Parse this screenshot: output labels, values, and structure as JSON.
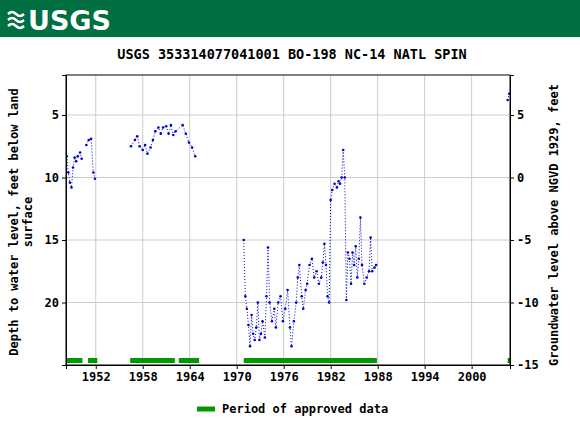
{
  "header": {
    "logo": "USGS"
  },
  "chart_data": {
    "type": "line",
    "title": "USGS 353314077041001 BO-198 NC-14 NATL SPIN",
    "ylabel": [
      "Depth to water level, feet below land",
      "surface"
    ],
    "y2label": "Groundwater level above NGVD 1929, feet",
    "xlim": [
      1948.2,
      2004.9
    ],
    "xticks": [
      1952,
      1958,
      1964,
      1970,
      1976,
      1982,
      1988,
      1994,
      2000
    ],
    "ylim": [
      25,
      1.8
    ],
    "yticks": [
      5,
      10,
      15,
      20
    ],
    "y2lim": [
      -15,
      8.2
    ],
    "y2ticks": [
      5,
      0,
      -5,
      -10,
      -15
    ],
    "grid": true,
    "legend": "bottom",
    "x": [
      1948.3,
      1948.5,
      1948.7,
      1948.9,
      1949.1,
      1949.3,
      1949.5,
      1949.7,
      1950.0,
      1950.2,
      null,
      1950.8,
      1951.1,
      1951.4,
      1951.7,
      1951.9,
      null,
      1956.5,
      1957.0,
      1957.3,
      1957.6,
      1958.0,
      1958.3,
      1958.6,
      1959.0,
      1959.3,
      1959.6,
      1960.0,
      1960.3,
      1960.6,
      1961.0,
      1961.3,
      1961.6,
      1961.9,
      1962.2,
      1963.1,
      1963.5,
      1963.9,
      1964.3,
      1964.7,
      null,
      1970.9,
      1971.1,
      1971.3,
      1971.5,
      1971.7,
      1971.9,
      1972.1,
      1972.3,
      1972.5,
      1972.7,
      1972.9,
      1973.1,
      1973.3,
      1973.6,
      1973.8,
      1974.0,
      1974.2,
      1974.5,
      1974.8,
      1975.0,
      1975.3,
      1975.6,
      1975.9,
      1976.2,
      1976.5,
      1976.8,
      1977.0,
      1977.3,
      1977.6,
      1977.8,
      1978.0,
      1978.3,
      1978.5,
      1978.8,
      1979.0,
      1979.3,
      1979.6,
      1979.9,
      1980.2,
      1980.5,
      1980.8,
      1981.0,
      1981.2,
      1981.4,
      1981.6,
      1981.8,
      1982.0,
      1982.2,
      1982.5,
      1982.8,
      1983.0,
      1983.2,
      1983.4,
      1983.6,
      1983.8,
      1984.0,
      1984.2,
      1984.4,
      1984.6,
      1984.8,
      1985.0,
      1985.2,
      1985.4,
      1985.6,
      1985.8,
      1986.0,
      1986.3,
      1986.6,
      1986.9,
      1987.1,
      1987.3,
      1987.6,
      1987.8,
      null,
      2004.6,
      2004.8
    ],
    "series": [
      {
        "color": "#0000cc",
        "marker": "circle",
        "line_style": "dotted",
        "values": [
          8.3,
          9.6,
          10.4,
          10.8,
          9.2,
          8.4,
          8.7,
          8.3,
          8.0,
          8.5,
          null,
          7.4,
          7.0,
          6.9,
          9.6,
          10.1,
          null,
          7.5,
          7.0,
          6.7,
          7.5,
          7.8,
          7.4,
          8.1,
          7.6,
          7.0,
          6.3,
          6.0,
          6.5,
          6.0,
          5.9,
          6.5,
          5.8,
          6.6,
          6.3,
          5.8,
          6.5,
          7.2,
          7.6,
          8.3,
          null,
          15.0,
          19.5,
          20.5,
          21.8,
          23.5,
          21.0,
          22.5,
          23.0,
          22.0,
          20.0,
          23.0,
          22.5,
          21.5,
          22.8,
          19.5,
          15.6,
          20.0,
          21.5,
          20.5,
          22.0,
          20.0,
          19.5,
          21.5,
          20.5,
          19.0,
          22.0,
          23.5,
          21.5,
          20.0,
          18.0,
          17.0,
          19.5,
          20.5,
          19.0,
          18.5,
          17.0,
          16.5,
          18.0,
          17.5,
          18.5,
          18.0,
          16.8,
          15.3,
          17.0,
          19.5,
          20.0,
          11.8,
          11.0,
          10.5,
          10.8,
          10.3,
          10.5,
          10.0,
          7.8,
          10.0,
          19.8,
          16.0,
          16.5,
          18.5,
          16.0,
          17.0,
          15.5,
          18.0,
          16.5,
          13.2,
          17.0,
          18.5,
          18.0,
          17.5,
          14.8,
          17.5,
          17.2,
          17.0,
          null,
          3.8,
          3.3
        ]
      }
    ],
    "approved_periods": {
      "name": "Period of approved data",
      "color": "#009900",
      "ranges": [
        [
          1948.2,
          1950.3
        ],
        [
          1951.0,
          1952.2
        ],
        [
          1956.4,
          1962.1
        ],
        [
          1962.6,
          1965.2
        ],
        [
          1970.9,
          1987.9
        ],
        [
          2004.6,
          2004.9
        ]
      ]
    }
  }
}
